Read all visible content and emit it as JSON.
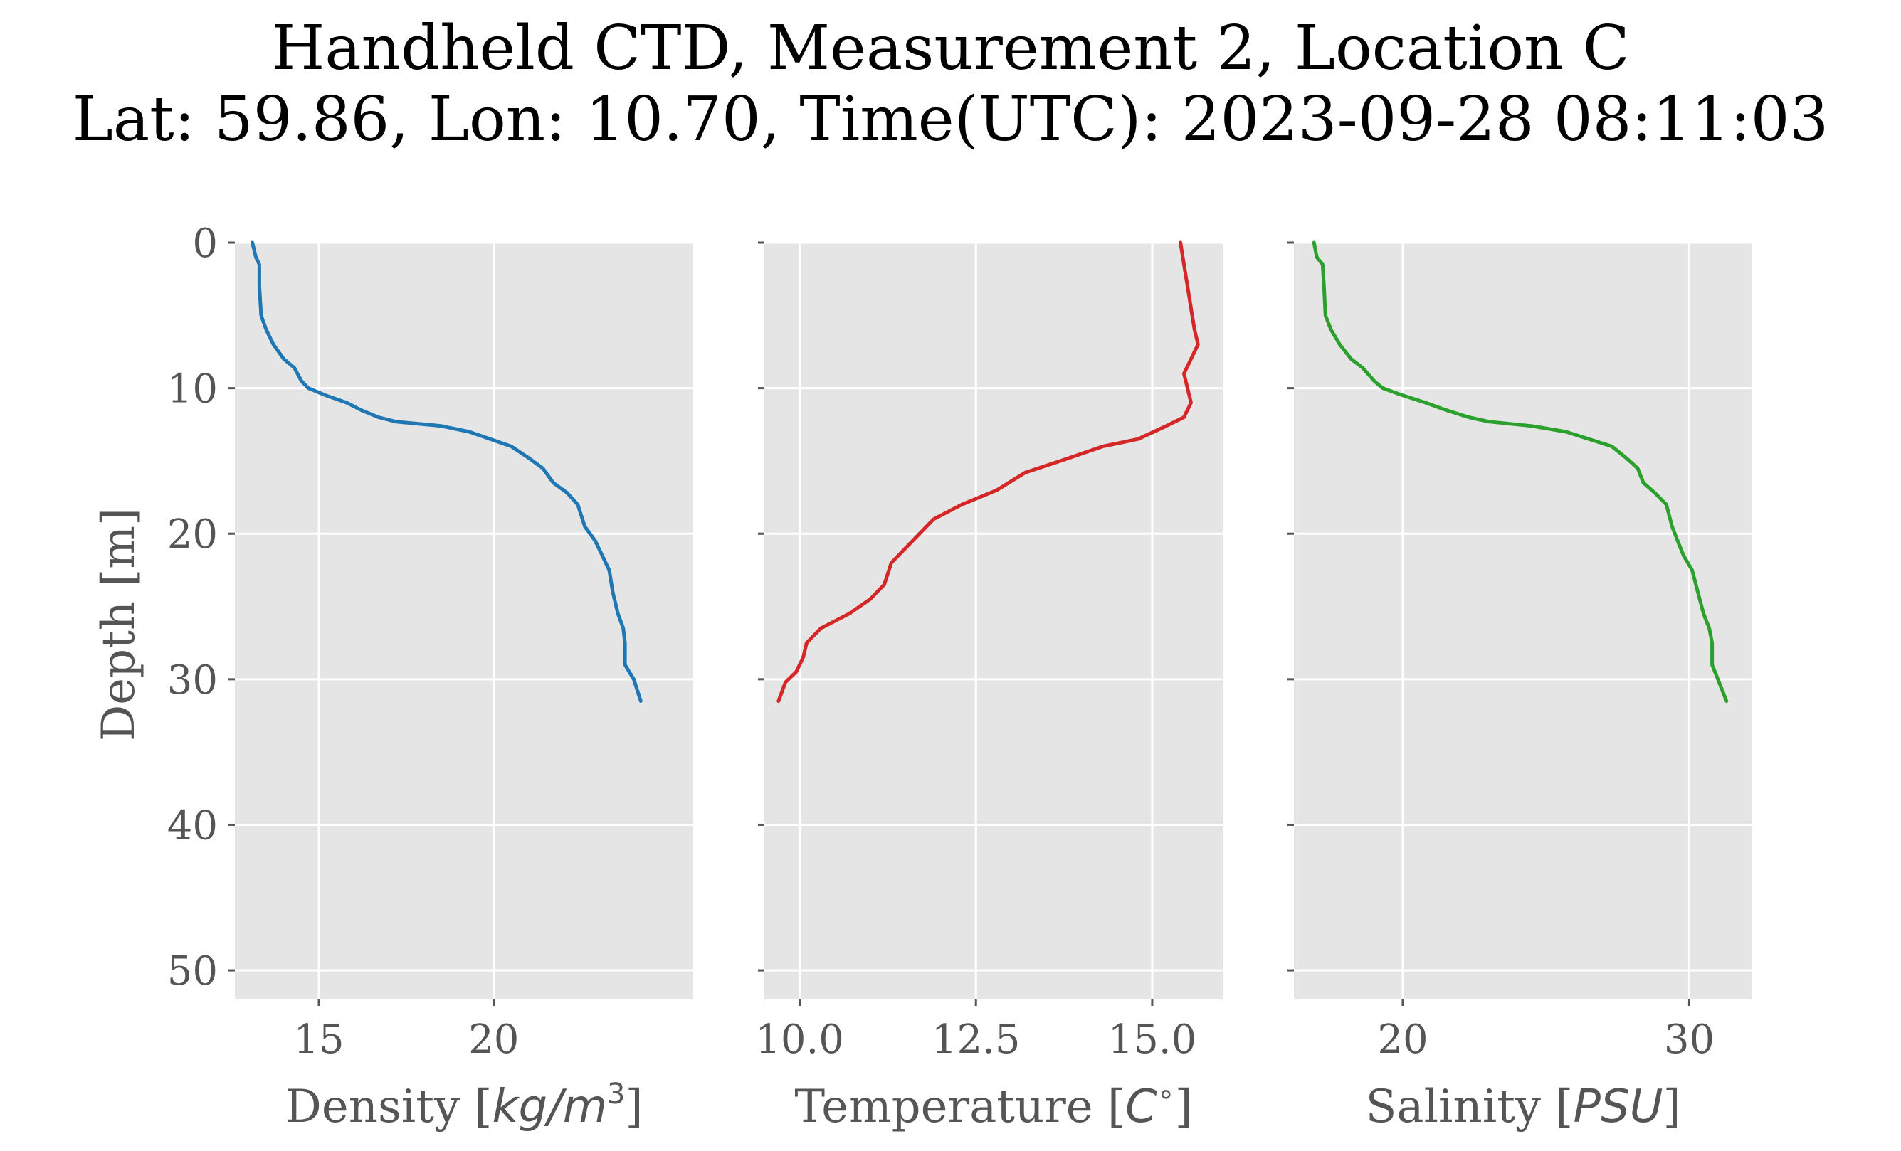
{
  "title_lines": [
    "Handheld CTD, Measurement 2, Location C",
    "Lat: 59.86, Lon: 10.70, Time(UTC): 2023-09-28 08:11:03"
  ],
  "chart_data": {
    "type": "line",
    "shared_y": {
      "label": "Depth [m]",
      "range": [
        52,
        0
      ],
      "inverted": true,
      "ticks": [
        0,
        10,
        20,
        30,
        40,
        50
      ],
      "tick_labels": [
        "0",
        "10",
        "20",
        "30",
        "40",
        "50"
      ]
    },
    "style": {
      "background": "#e5e5e5",
      "grid": true,
      "grid_color": "#ffffff"
    },
    "panels": [
      {
        "xlabel": "Density [kg/m³]",
        "xlabel_parts": {
          "prefix": "Density [",
          "unit_main": "kg/m",
          "unit_sup": "3",
          "suffix": "]"
        },
        "xlim": [
          12.6,
          25.7
        ],
        "xticks": [
          15,
          20
        ],
        "xtick_labels": [
          "15",
          "20"
        ],
        "color": "#1f77b4",
        "points": [
          [
            13.1,
            0.0
          ],
          [
            13.2,
            1.0
          ],
          [
            13.3,
            1.5
          ],
          [
            13.3,
            3.0
          ],
          [
            13.35,
            5.0
          ],
          [
            13.5,
            6.0
          ],
          [
            13.7,
            7.0
          ],
          [
            14.0,
            8.0
          ],
          [
            14.3,
            8.6
          ],
          [
            14.5,
            9.5
          ],
          [
            14.7,
            10.0
          ],
          [
            15.2,
            10.5
          ],
          [
            15.8,
            11.0
          ],
          [
            16.2,
            11.5
          ],
          [
            16.7,
            12.0
          ],
          [
            17.2,
            12.3
          ],
          [
            18.5,
            12.6
          ],
          [
            19.3,
            13.0
          ],
          [
            20.5,
            14.0
          ],
          [
            21.0,
            14.8
          ],
          [
            21.4,
            15.5
          ],
          [
            21.7,
            16.5
          ],
          [
            22.1,
            17.2
          ],
          [
            22.4,
            18.0
          ],
          [
            22.6,
            19.5
          ],
          [
            22.9,
            20.5
          ],
          [
            23.1,
            21.5
          ],
          [
            23.3,
            22.5
          ],
          [
            23.4,
            24.0
          ],
          [
            23.55,
            25.5
          ],
          [
            23.7,
            26.5
          ],
          [
            23.75,
            27.5
          ],
          [
            23.75,
            29.0
          ],
          [
            24.0,
            30.0
          ],
          [
            24.2,
            31.5
          ]
        ]
      },
      {
        "xlabel": "Temperature [C°]",
        "xlabel_parts": {
          "prefix": "Temperature [",
          "unit_main": "C",
          "unit_sup": "∘",
          "suffix": "]"
        },
        "xlim": [
          9.5,
          16.0
        ],
        "xticks": [
          10.0,
          12.5,
          15.0
        ],
        "xtick_labels": [
          "10.0",
          "12.5",
          "15.0"
        ],
        "color": "#d62728",
        "points": [
          [
            15.4,
            0.0
          ],
          [
            15.45,
            1.5
          ],
          [
            15.5,
            3.0
          ],
          [
            15.55,
            4.5
          ],
          [
            15.6,
            6.0
          ],
          [
            15.65,
            7.0
          ],
          [
            15.55,
            8.0
          ],
          [
            15.45,
            9.0
          ],
          [
            15.5,
            10.0
          ],
          [
            15.55,
            11.0
          ],
          [
            15.45,
            12.0
          ],
          [
            15.2,
            12.6
          ],
          [
            14.8,
            13.5
          ],
          [
            14.3,
            14.0
          ],
          [
            13.7,
            15.0
          ],
          [
            13.2,
            15.8
          ],
          [
            12.8,
            17.0
          ],
          [
            12.3,
            18.0
          ],
          [
            11.9,
            19.0
          ],
          [
            11.7,
            20.0
          ],
          [
            11.5,
            21.0
          ],
          [
            11.3,
            22.0
          ],
          [
            11.2,
            23.5
          ],
          [
            11.0,
            24.5
          ],
          [
            10.7,
            25.5
          ],
          [
            10.3,
            26.5
          ],
          [
            10.1,
            27.5
          ],
          [
            10.05,
            28.5
          ],
          [
            9.95,
            29.5
          ],
          [
            9.8,
            30.2
          ],
          [
            9.7,
            31.5
          ]
        ]
      },
      {
        "xlabel": "Salinity [PSU]",
        "xlabel_parts": {
          "prefix": "Salinity [",
          "unit_main": "PSU",
          "unit_sup": "",
          "suffix": "]"
        },
        "xlim": [
          16.2,
          32.2
        ],
        "xticks": [
          20,
          30
        ],
        "xtick_labels": [
          "20",
          "30"
        ],
        "color": "#2ca02c",
        "points": [
          [
            16.9,
            0.0
          ],
          [
            17.0,
            1.0
          ],
          [
            17.2,
            1.5
          ],
          [
            17.25,
            3.0
          ],
          [
            17.3,
            5.0
          ],
          [
            17.5,
            6.0
          ],
          [
            17.8,
            7.0
          ],
          [
            18.2,
            8.0
          ],
          [
            18.6,
            8.6
          ],
          [
            19.0,
            9.5
          ],
          [
            19.3,
            10.0
          ],
          [
            20.0,
            10.5
          ],
          [
            20.8,
            11.0
          ],
          [
            21.5,
            11.5
          ],
          [
            22.3,
            12.0
          ],
          [
            23.0,
            12.3
          ],
          [
            24.5,
            12.6
          ],
          [
            25.7,
            13.0
          ],
          [
            27.3,
            14.0
          ],
          [
            27.8,
            14.8
          ],
          [
            28.2,
            15.5
          ],
          [
            28.4,
            16.5
          ],
          [
            28.8,
            17.2
          ],
          [
            29.2,
            18.0
          ],
          [
            29.4,
            19.5
          ],
          [
            29.6,
            20.5
          ],
          [
            29.8,
            21.5
          ],
          [
            30.1,
            22.5
          ],
          [
            30.3,
            24.0
          ],
          [
            30.5,
            25.5
          ],
          [
            30.7,
            26.5
          ],
          [
            30.8,
            27.5
          ],
          [
            30.8,
            29.0
          ],
          [
            31.0,
            30.0
          ],
          [
            31.3,
            31.5
          ]
        ]
      }
    ]
  }
}
